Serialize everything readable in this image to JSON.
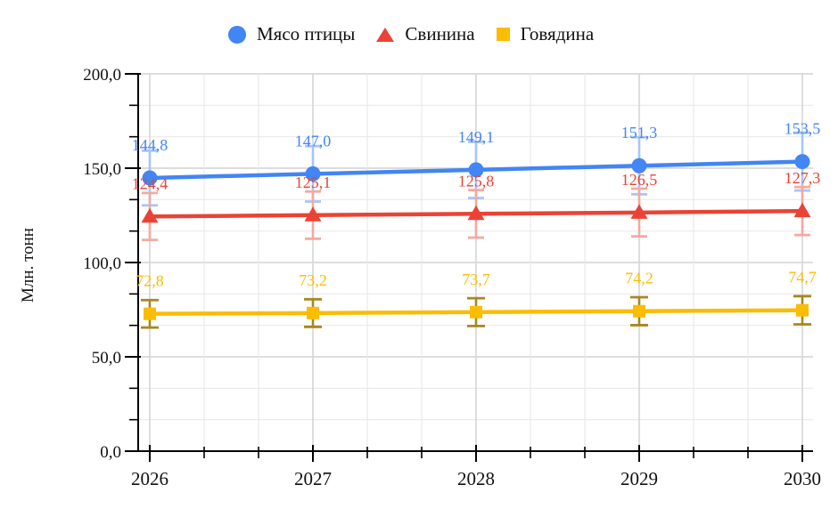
{
  "chart_data": {
    "type": "line",
    "title": "",
    "ylabel": "Млн. тонн",
    "x_categories": [
      "2026",
      "2027",
      "2028",
      "2029",
      "2030"
    ],
    "ylim": [
      0,
      200
    ],
    "y_major_step": 50,
    "y_minor_divisions_per_major": 3,
    "x_minor_divisions_per_category": 3,
    "grid": "major and minor gridlines on, light gray",
    "legend_position": "top",
    "decimal_separator": ",",
    "error_bars": {
      "type": "percent",
      "value": 10
    },
    "y_tick_labels": [
      "0,0",
      "50,0",
      "100,0",
      "150,0",
      "200,0"
    ],
    "series": [
      {
        "name": "Мясо птицы",
        "marker": "circle",
        "color": "#4285f4",
        "error_color": "#a6c5fa",
        "values": [
          144.8,
          147.0,
          149.1,
          151.3,
          153.5
        ],
        "data_labels": [
          "144,8",
          "147,0",
          "149,1",
          "151,3",
          "153,5"
        ]
      },
      {
        "name": "Свинина",
        "marker": "triangle",
        "color": "#ea4335",
        "error_color": "#f4a9a0",
        "values": [
          124.4,
          125.1,
          125.8,
          126.5,
          127.3
        ],
        "data_labels": [
          "124,4",
          "125,1",
          "125,8",
          "126,5",
          "127,3"
        ]
      },
      {
        "name": "Говядина",
        "marker": "square",
        "color": "#fbbc04",
        "error_color": "#a8871d",
        "values": [
          72.8,
          73.2,
          73.7,
          74.2,
          74.7
        ],
        "data_labels": [
          "72,8",
          "73,2",
          "73,7",
          "74,2",
          "74,7"
        ]
      }
    ],
    "colors": {
      "axis": "#000000",
      "text": "#111111",
      "gridline_major": "#d8d8d8",
      "gridline_minor": "#e9e9e9",
      "background": "#ffffff"
    }
  }
}
